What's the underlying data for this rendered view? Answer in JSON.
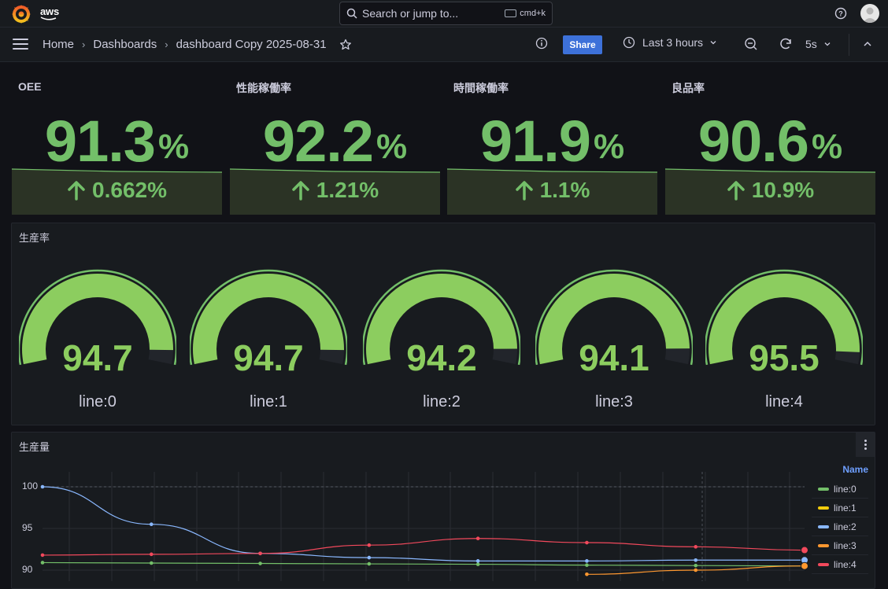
{
  "topbar": {
    "brand": "aws",
    "search_placeholder": "Search or jump to...",
    "shortcut": "cmd+k"
  },
  "breadcrumb": {
    "home": "Home",
    "dashboards": "Dashboards",
    "current": "dashboard Copy 2025-08-31"
  },
  "toolbar": {
    "share_label": "Share",
    "time_range": "Last 3 hours",
    "refresh_interval": "5s"
  },
  "stats": [
    {
      "title": "OEE",
      "value": "91.3",
      "unit": "%",
      "delta": "0.662%"
    },
    {
      "title": "性能稼働率",
      "value": "92.2",
      "unit": "%",
      "delta": "1.21%"
    },
    {
      "title": "時間稼働率",
      "value": "91.9",
      "unit": "%",
      "delta": "1.1%"
    },
    {
      "title": "良品率",
      "value": "90.6",
      "unit": "%",
      "delta": "10.9%"
    }
  ],
  "gauge_panel": {
    "title": "生産率",
    "gauges": [
      {
        "value": "94.7",
        "label": "line:0",
        "fraction": 0.947
      },
      {
        "value": "94.7",
        "label": "line:1",
        "fraction": 0.947
      },
      {
        "value": "94.2",
        "label": "line:2",
        "fraction": 0.942
      },
      {
        "value": "94.1",
        "label": "line:3",
        "fraction": 0.941
      },
      {
        "value": "95.5",
        "label": "line:4",
        "fraction": 0.955
      }
    ]
  },
  "timeseries_panel": {
    "title": "生産量",
    "legend_header": "Name"
  },
  "colors": {
    "green": "#73bf69",
    "gauge_green": "#8ccd5f",
    "blue_accent": "#3d71d9"
  },
  "chart_data": {
    "type": "line",
    "ylim": [
      89.5,
      101
    ],
    "yticks": [
      "100",
      "95",
      "90"
    ],
    "x": [
      0,
      1,
      2,
      3,
      4,
      5,
      6,
      7
    ],
    "series": [
      {
        "name": "line:0",
        "color": "#73bf69",
        "values": [
          90.9,
          90.85,
          90.8,
          90.75,
          90.7,
          90.6,
          90.55,
          90.5
        ]
      },
      {
        "name": "line:1",
        "color": "#f2cc0c",
        "values": [
          null,
          null,
          null,
          null,
          null,
          null,
          null,
          null
        ]
      },
      {
        "name": "line:2",
        "color": "#8ab8ff",
        "values": [
          100,
          95.5,
          92,
          91.5,
          91.1,
          91.1,
          91.2,
          91.2
        ]
      },
      {
        "name": "line:3",
        "color": "#ff9830",
        "values": [
          null,
          null,
          null,
          null,
          null,
          89.5,
          90.0,
          90.5
        ]
      },
      {
        "name": "line:4",
        "color": "#f2495c",
        "values": [
          91.8,
          91.9,
          92.0,
          93.0,
          93.8,
          93.3,
          92.8,
          92.4
        ]
      }
    ]
  }
}
